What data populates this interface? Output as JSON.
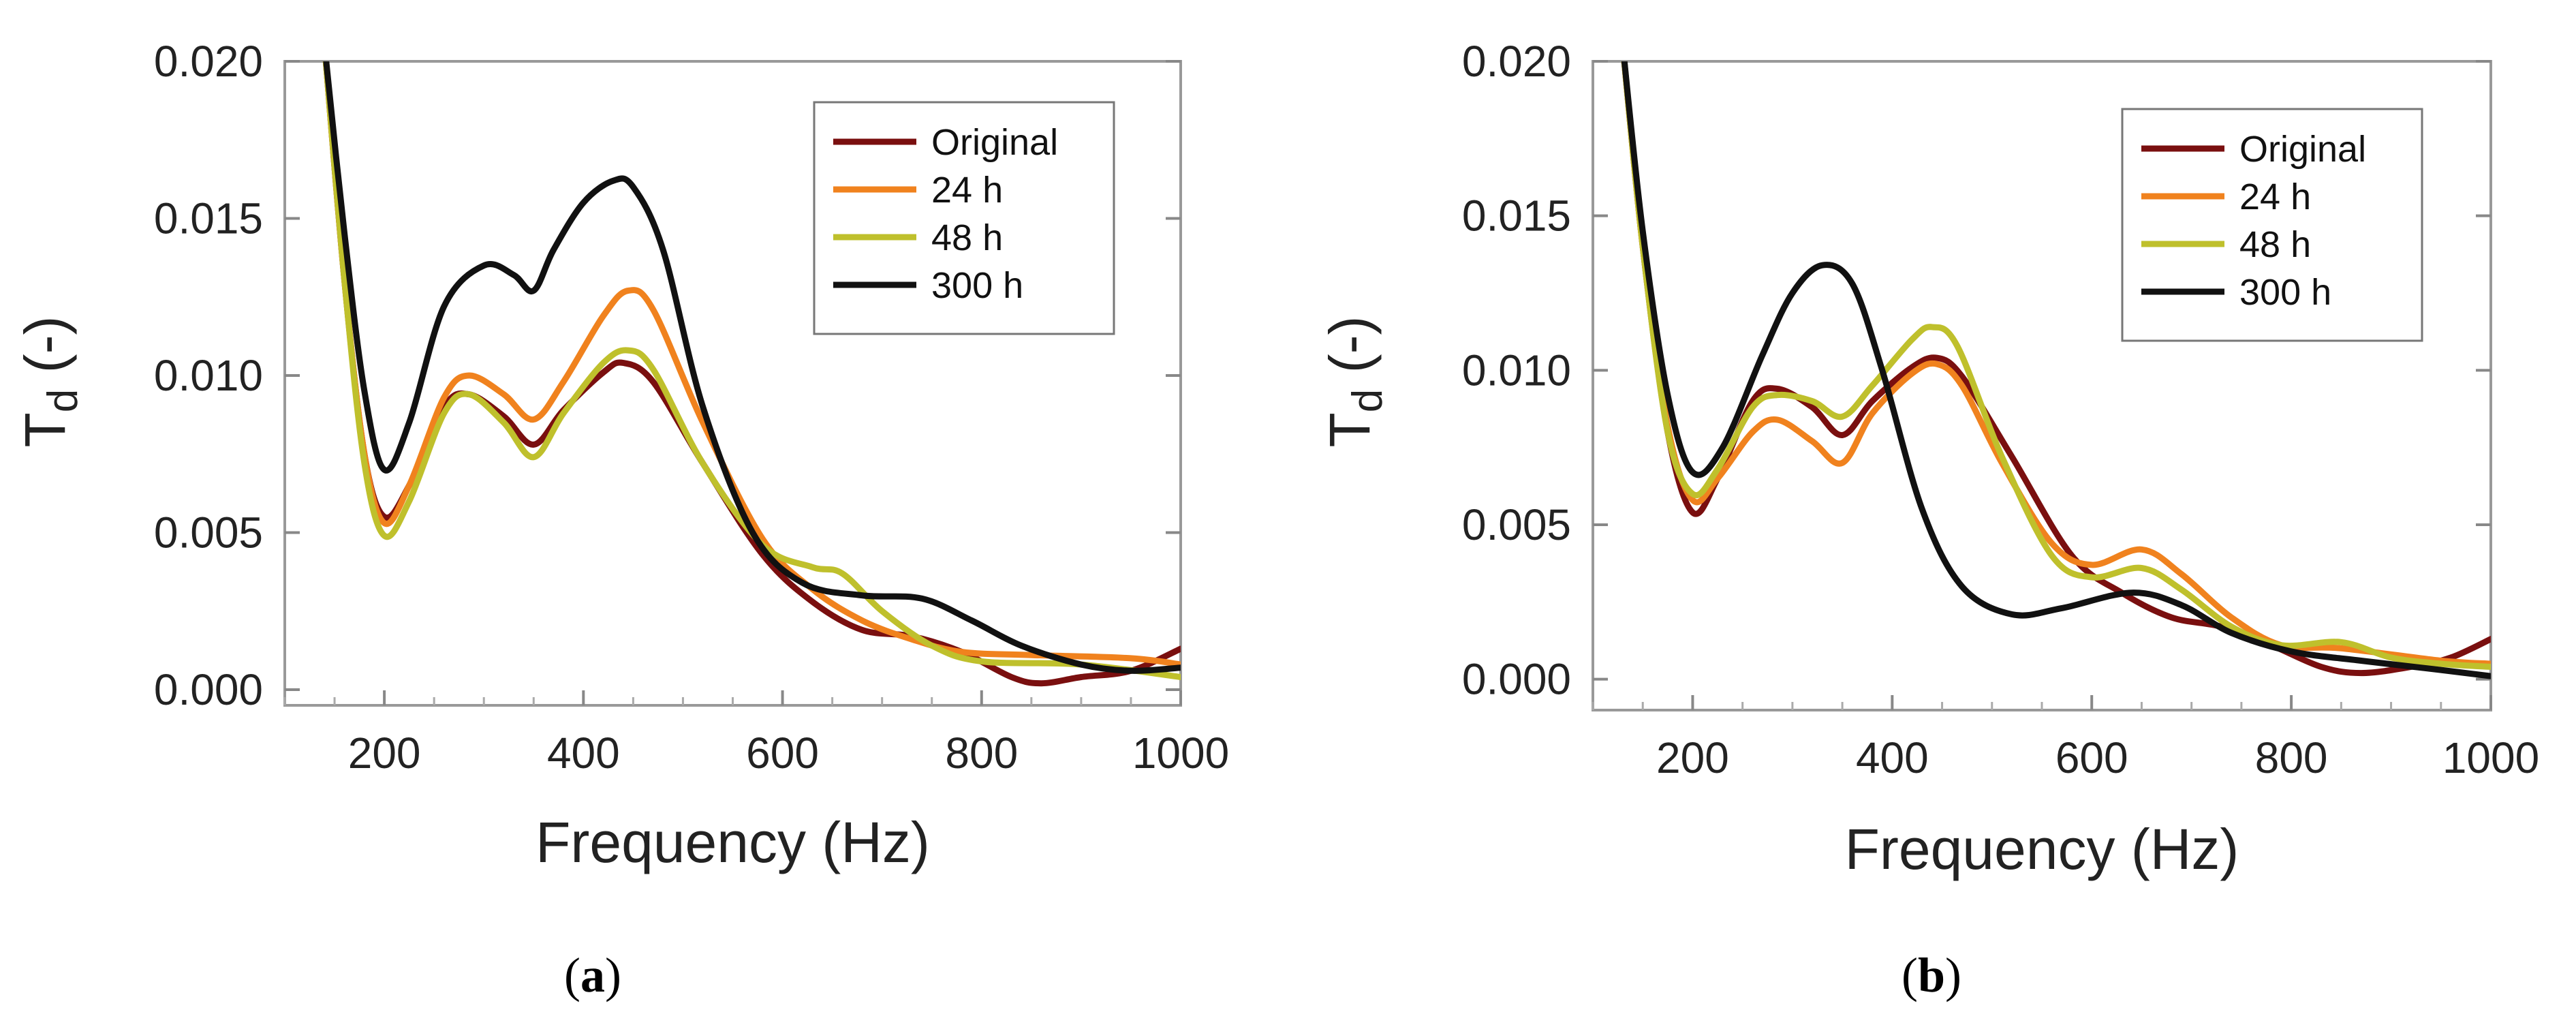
{
  "colors": {
    "Original": "#7a0f0f",
    "24 h": "#f0821e",
    "48 h": "#bfc02c",
    "300 h": "#111111"
  },
  "chart_data": [
    {
      "type": "line",
      "panel_label": "a",
      "caption": "(a)",
      "title": "",
      "xlabel": "Frequency (Hz)",
      "ylabel_main": "T",
      "ylabel_sub": "d",
      "ylabel_suffix": " (-)",
      "xlim": [
        100,
        1000
      ],
      "ylim": [
        -0.0005,
        0.02
      ],
      "xticks": [
        200,
        400,
        600,
        800,
        1000
      ],
      "yticks": [
        0.0,
        0.005,
        0.01,
        0.015,
        0.02
      ],
      "ytick_labels": [
        "0.000",
        "0.005",
        "0.010",
        "0.015",
        "0.020"
      ],
      "legend_position": "top-right",
      "series": [
        {
          "name": "Original",
          "points": [
            [
              140,
              0.0205
            ],
            [
              160,
              0.013
            ],
            [
              180,
              0.0075
            ],
            [
              200,
              0.0055
            ],
            [
              225,
              0.0065
            ],
            [
              260,
              0.009
            ],
            [
              285,
              0.0094
            ],
            [
              320,
              0.0087
            ],
            [
              350,
              0.0078
            ],
            [
              380,
              0.0089
            ],
            [
              420,
              0.0101
            ],
            [
              440,
              0.0104
            ],
            [
              470,
              0.0098
            ],
            [
              520,
              0.0072
            ],
            [
              580,
              0.0043
            ],
            [
              630,
              0.0028
            ],
            [
              680,
              0.0019
            ],
            [
              730,
              0.0017
            ],
            [
              780,
              0.0012
            ],
            [
              830,
              0.0004
            ],
            [
              860,
              0.0002
            ],
            [
              900,
              0.0004
            ],
            [
              950,
              0.0006
            ],
            [
              1000,
              0.0013
            ]
          ]
        },
        {
          "name": "24 h",
          "points": [
            [
              140,
              0.0205
            ],
            [
              160,
              0.013
            ],
            [
              180,
              0.0075
            ],
            [
              200,
              0.0053
            ],
            [
              225,
              0.0065
            ],
            [
              260,
              0.0093
            ],
            [
              285,
              0.01
            ],
            [
              320,
              0.0094
            ],
            [
              350,
              0.0086
            ],
            [
              380,
              0.0098
            ],
            [
              420,
              0.0119
            ],
            [
              445,
              0.0127
            ],
            [
              470,
              0.0121
            ],
            [
              520,
              0.0085
            ],
            [
              580,
              0.0048
            ],
            [
              630,
              0.0032
            ],
            [
              680,
              0.0022
            ],
            [
              730,
              0.0016
            ],
            [
              780,
              0.0012
            ],
            [
              850,
              0.0011
            ],
            [
              950,
              0.001
            ],
            [
              1000,
              0.0008
            ]
          ]
        },
        {
          "name": "48 h",
          "points": [
            [
              140,
              0.0205
            ],
            [
              160,
              0.013
            ],
            [
              180,
              0.0072
            ],
            [
              200,
              0.0049
            ],
            [
              225,
              0.006
            ],
            [
              260,
              0.0088
            ],
            [
              285,
              0.0094
            ],
            [
              320,
              0.0085
            ],
            [
              350,
              0.0074
            ],
            [
              380,
              0.0088
            ],
            [
              420,
              0.0104
            ],
            [
              445,
              0.0108
            ],
            [
              470,
              0.0102
            ],
            [
              520,
              0.0072
            ],
            [
              580,
              0.0046
            ],
            [
              630,
              0.0039
            ],
            [
              660,
              0.0037
            ],
            [
              700,
              0.0025
            ],
            [
              750,
              0.0014
            ],
            [
              800,
              0.0009
            ],
            [
              900,
              0.0008
            ],
            [
              1000,
              0.0004
            ]
          ]
        },
        {
          "name": "300 h",
          "points": [
            [
              140,
              0.0205
            ],
            [
              160,
              0.0145
            ],
            [
              180,
              0.0095
            ],
            [
              200,
              0.007
            ],
            [
              225,
              0.0085
            ],
            [
              260,
              0.0122
            ],
            [
              300,
              0.0135
            ],
            [
              330,
              0.0132
            ],
            [
              350,
              0.0127
            ],
            [
              370,
              0.014
            ],
            [
              400,
              0.0155
            ],
            [
              430,
              0.0162
            ],
            [
              450,
              0.016
            ],
            [
              480,
              0.014
            ],
            [
              520,
              0.009
            ],
            [
              570,
              0.005
            ],
            [
              620,
              0.0034
            ],
            [
              680,
              0.003
            ],
            [
              740,
              0.0029
            ],
            [
              790,
              0.0022
            ],
            [
              840,
              0.0014
            ],
            [
              900,
              0.0008
            ],
            [
              950,
              0.0006
            ],
            [
              1000,
              0.0007
            ]
          ]
        }
      ]
    },
    {
      "type": "line",
      "panel_label": "b",
      "caption": "(b)",
      "title": "",
      "xlabel": "Frequency (Hz)",
      "ylabel_main": "T",
      "ylabel_sub": "d",
      "ylabel_suffix": " (-)",
      "xlim": [
        100,
        1000
      ],
      "ylim": [
        -0.001,
        0.02
      ],
      "xticks": [
        200,
        400,
        600,
        800,
        1000
      ],
      "yticks": [
        0.0,
        0.005,
        0.01,
        0.015,
        0.02
      ],
      "ytick_labels": [
        "0.000",
        "0.005",
        "0.010",
        "0.015",
        "0.020"
      ],
      "legend_position": "top-right",
      "series": [
        {
          "name": "Original",
          "points": [
            [
              130,
              0.0205
            ],
            [
              150,
              0.014
            ],
            [
              175,
              0.008
            ],
            [
              200,
              0.0054
            ],
            [
              225,
              0.0065
            ],
            [
              260,
              0.009
            ],
            [
              285,
              0.0094
            ],
            [
              320,
              0.0088
            ],
            [
              350,
              0.0079
            ],
            [
              380,
              0.009
            ],
            [
              420,
              0.0101
            ],
            [
              445,
              0.0104
            ],
            [
              470,
              0.0098
            ],
            [
              520,
              0.0072
            ],
            [
              580,
              0.004
            ],
            [
              630,
              0.0028
            ],
            [
              680,
              0.002
            ],
            [
              730,
              0.0017
            ],
            [
              780,
              0.0011
            ],
            [
              830,
              0.0004
            ],
            [
              870,
              0.0002
            ],
            [
              920,
              0.0004
            ],
            [
              960,
              0.0007
            ],
            [
              1000,
              0.0013
            ]
          ]
        },
        {
          "name": "24 h",
          "points": [
            [
              130,
              0.0205
            ],
            [
              150,
              0.014
            ],
            [
              175,
              0.0082
            ],
            [
              200,
              0.0058
            ],
            [
              225,
              0.0065
            ],
            [
              260,
              0.008
            ],
            [
              285,
              0.0084
            ],
            [
              320,
              0.0077
            ],
            [
              350,
              0.007
            ],
            [
              380,
              0.0086
            ],
            [
              420,
              0.0099
            ],
            [
              445,
              0.0102
            ],
            [
              470,
              0.0095
            ],
            [
              510,
              0.007
            ],
            [
              560,
              0.0044
            ],
            [
              600,
              0.0037
            ],
            [
              650,
              0.0042
            ],
            [
              690,
              0.0034
            ],
            [
              740,
              0.002
            ],
            [
              790,
              0.0011
            ],
            [
              850,
              0.001
            ],
            [
              950,
              0.0006
            ],
            [
              1000,
              0.0005
            ]
          ]
        },
        {
          "name": "48 h",
          "points": [
            [
              130,
              0.0205
            ],
            [
              150,
              0.014
            ],
            [
              175,
              0.008
            ],
            [
              200,
              0.006
            ],
            [
              225,
              0.0068
            ],
            [
              260,
              0.0088
            ],
            [
              285,
              0.0092
            ],
            [
              320,
              0.009
            ],
            [
              350,
              0.0085
            ],
            [
              380,
              0.0095
            ],
            [
              420,
              0.011
            ],
            [
              440,
              0.0114
            ],
            [
              465,
              0.0108
            ],
            [
              510,
              0.0072
            ],
            [
              560,
              0.004
            ],
            [
              600,
              0.0033
            ],
            [
              650,
              0.0036
            ],
            [
              690,
              0.0029
            ],
            [
              740,
              0.0017
            ],
            [
              790,
              0.0011
            ],
            [
              850,
              0.0012
            ],
            [
              900,
              0.0007
            ],
            [
              950,
              0.0005
            ],
            [
              1000,
              0.0004
            ]
          ]
        },
        {
          "name": "300 h",
          "points": [
            [
              130,
              0.0205
            ],
            [
              150,
              0.0145
            ],
            [
              175,
              0.0092
            ],
            [
              200,
              0.0067
            ],
            [
              230,
              0.0075
            ],
            [
              270,
              0.0105
            ],
            [
              300,
              0.0125
            ],
            [
              330,
              0.0134
            ],
            [
              360,
              0.0128
            ],
            [
              390,
              0.01
            ],
            [
              430,
              0.0055
            ],
            [
              470,
              0.003
            ],
            [
              520,
              0.0021
            ],
            [
              570,
              0.0023
            ],
            [
              640,
              0.0028
            ],
            [
              690,
              0.0024
            ],
            [
              740,
              0.0015
            ],
            [
              800,
              0.0009
            ],
            [
              870,
              0.0006
            ],
            [
              950,
              0.0003
            ],
            [
              1000,
              0.0001
            ]
          ]
        }
      ]
    }
  ]
}
